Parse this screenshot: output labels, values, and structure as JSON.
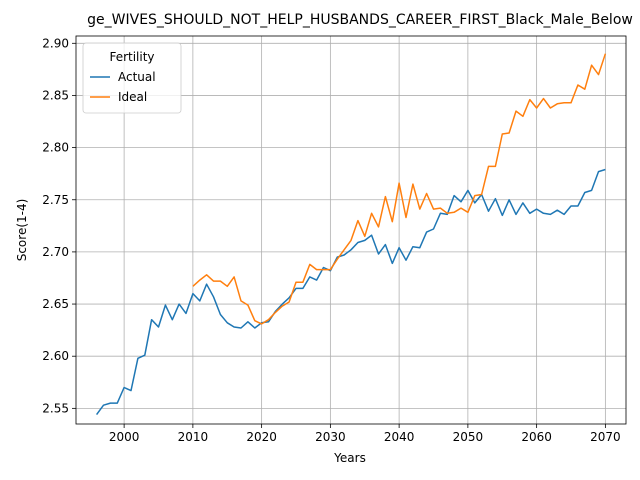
{
  "chart_data": {
    "type": "line",
    "title": "ge_WIVES_SHOULD_NOT_HELP_HUSBANDS_CAREER_FIRST_Black_Male_Below",
    "xlabel": "Years",
    "ylabel": "Score(1-4)",
    "xlim": [
      1993,
      2073
    ],
    "ylim": [
      2.535,
      2.907
    ],
    "xticks": [
      "2000",
      "2010",
      "2020",
      "2030",
      "2040",
      "2050",
      "2060",
      "2070"
    ],
    "yticks": [
      "2.55",
      "2.60",
      "2.65",
      "2.70",
      "2.75",
      "2.80",
      "2.85",
      "2.90"
    ],
    "grid": true,
    "legend": {
      "title": "Fertility",
      "placement": "upper-left"
    },
    "series": [
      {
        "name": "Actual",
        "color": "#1f77b4",
        "x": [
          1996,
          1997,
          1998,
          1999,
          2000,
          2001,
          2002,
          2003,
          2004,
          2005,
          2006,
          2007,
          2008,
          2009,
          2010,
          2011,
          2012,
          2013,
          2014,
          2015,
          2016,
          2017,
          2018,
          2019,
          2020,
          2021,
          2022,
          2023,
          2024,
          2025,
          2026,
          2027,
          2028,
          2029,
          2030,
          2031,
          2032,
          2033,
          2034,
          2035,
          2036,
          2037,
          2038,
          2039,
          2040,
          2041,
          2042,
          2043,
          2044,
          2045,
          2046,
          2047,
          2048,
          2049,
          2050,
          2051,
          2052,
          2053,
          2054,
          2055,
          2056,
          2057,
          2058,
          2059,
          2060,
          2061,
          2062,
          2063,
          2064,
          2065,
          2066,
          2067,
          2068,
          2069,
          2070
        ],
        "values": [
          2.544,
          2.553,
          2.555,
          2.555,
          2.57,
          2.567,
          2.598,
          2.601,
          2.635,
          2.628,
          2.649,
          2.635,
          2.65,
          2.641,
          2.66,
          2.653,
          2.669,
          2.657,
          2.64,
          2.632,
          2.628,
          2.627,
          2.633,
          2.627,
          2.632,
          2.633,
          2.643,
          2.65,
          2.656,
          2.665,
          2.665,
          2.676,
          2.673,
          2.685,
          2.682,
          2.695,
          2.697,
          2.702,
          2.709,
          2.711,
          2.716,
          2.698,
          2.707,
          2.689,
          2.704,
          2.692,
          2.705,
          2.704,
          2.719,
          2.722,
          2.737,
          2.736,
          2.754,
          2.748,
          2.759,
          2.747,
          2.755,
          2.739,
          2.751,
          2.735,
          2.75,
          2.736,
          2.747,
          2.737,
          2.741,
          2.737,
          2.736,
          2.74,
          2.736,
          2.744,
          2.744,
          2.757,
          2.759,
          2.777,
          2.779
        ]
      },
      {
        "name": "Ideal",
        "color": "#ff7f0e",
        "x": [
          2010,
          2011,
          2012,
          2013,
          2014,
          2015,
          2016,
          2017,
          2018,
          2019,
          2020,
          2021,
          2022,
          2023,
          2024,
          2025,
          2026,
          2027,
          2028,
          2029,
          2030,
          2031,
          2032,
          2033,
          2034,
          2035,
          2036,
          2037,
          2038,
          2039,
          2040,
          2041,
          2042,
          2043,
          2044,
          2045,
          2046,
          2047,
          2048,
          2049,
          2050,
          2051,
          2052,
          2053,
          2054,
          2055,
          2056,
          2057,
          2058,
          2059,
          2060,
          2061,
          2062,
          2063,
          2064,
          2065,
          2066,
          2067,
          2068,
          2069,
          2070
        ],
        "values": [
          2.667,
          2.673,
          2.678,
          2.672,
          2.672,
          2.667,
          2.676,
          2.653,
          2.649,
          2.634,
          2.631,
          2.635,
          2.642,
          2.648,
          2.652,
          2.671,
          2.671,
          2.688,
          2.683,
          2.683,
          2.683,
          2.693,
          2.702,
          2.711,
          2.73,
          2.715,
          2.737,
          2.724,
          2.753,
          2.729,
          2.766,
          2.733,
          2.765,
          2.741,
          2.756,
          2.741,
          2.742,
          2.737,
          2.738,
          2.742,
          2.738,
          2.754,
          2.755,
          2.782,
          2.782,
          2.813,
          2.814,
          2.835,
          2.83,
          2.846,
          2.838,
          2.847,
          2.838,
          2.842,
          2.843,
          2.843,
          2.86,
          2.856,
          2.879,
          2.87,
          2.89
        ]
      }
    ]
  }
}
